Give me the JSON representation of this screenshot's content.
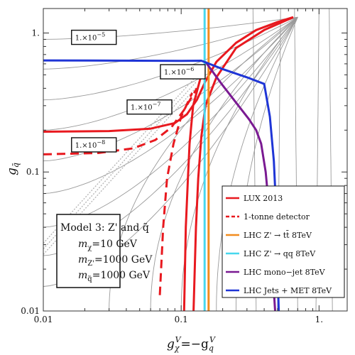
{
  "chart_data": {
    "type": "line",
    "xscale": "log",
    "yscale": "log",
    "xlim": [
      0.01,
      1.6
    ],
    "ylim": [
      0.01,
      1.5
    ],
    "xlabel": "g_χ^V=−g_q^V",
    "ylabel": "g_q̃",
    "x_ticks": [
      {
        "value": 0.01,
        "label": "0.01"
      },
      {
        "value": 0.1,
        "label": "0.1"
      },
      {
        "value": 1,
        "label": "1."
      }
    ],
    "y_ticks": [
      {
        "value": 0.01,
        "label": "0.01"
      },
      {
        "value": 0.1,
        "label": "0.1"
      },
      {
        "value": 1,
        "label": "1."
      }
    ],
    "contour_labels": [
      {
        "mantissa": "1.×10",
        "exponent": "−5",
        "x": 0.017,
        "y": 0.92
      },
      {
        "mantissa": "1.×10",
        "exponent": "−6",
        "x": 0.075,
        "y": 0.52
      },
      {
        "mantissa": "1.×10",
        "exponent": "−7",
        "x": 0.043,
        "y": 0.29
      },
      {
        "mantissa": "1.×10",
        "exponent": "−8",
        "x": 0.017,
        "y": 0.155
      }
    ],
    "series": [
      {
        "name": "LUX 2013",
        "color": "#e8191f",
        "dash": "solid",
        "segments": [
          [
            [
              0.01,
              0.195
            ],
            [
              0.03,
              0.197
            ],
            [
              0.06,
              0.205
            ],
            [
              0.09,
              0.225
            ],
            [
              0.11,
              0.26
            ],
            [
              0.13,
              0.33
            ],
            [
              0.15,
              0.45
            ],
            [
              0.18,
              0.62
            ],
            [
              0.25,
              0.85
            ],
            [
              0.35,
              1.05
            ],
            [
              0.5,
              1.2
            ],
            [
              0.65,
              1.3
            ]
          ],
          [
            [
              0.65,
              1.3
            ],
            [
              0.4,
              1.05
            ],
            [
              0.25,
              0.78
            ],
            [
              0.18,
              0.48
            ],
            [
              0.15,
              0.3
            ],
            [
              0.14,
              0.18
            ],
            [
              0.133,
              0.09
            ],
            [
              0.128,
              0.04
            ],
            [
              0.123,
              0.01
            ]
          ],
          [
            [
              0.105,
              0.01
            ],
            [
              0.108,
              0.04
            ],
            [
              0.112,
              0.09
            ],
            [
              0.115,
              0.16
            ],
            [
              0.122,
              0.3
            ],
            [
              0.14,
              0.5
            ]
          ]
        ]
      },
      {
        "name": "1-tonne detector",
        "color": "#e8191f",
        "dash": "dashed",
        "segments": [
          [
            [
              0.01,
              0.134
            ],
            [
              0.025,
              0.137
            ],
            [
              0.045,
              0.148
            ],
            [
              0.065,
              0.17
            ],
            [
              0.085,
              0.21
            ],
            [
              0.105,
              0.28
            ],
            [
              0.13,
              0.4
            ]
          ],
          [
            [
              0.07,
              0.013
            ],
            [
              0.074,
              0.04
            ],
            [
              0.079,
              0.09
            ],
            [
              0.088,
              0.16
            ],
            [
              0.1,
              0.25
            ],
            [
              0.12,
              0.37
            ]
          ]
        ]
      },
      {
        "name": "LHC Z' → tt̄ 8TeV",
        "color": "#f28c1e",
        "dash": "solid",
        "segments": [
          [
            [
              0.158,
              0.01
            ],
            [
              0.158,
              1.5
            ]
          ]
        ]
      },
      {
        "name": "LHC Z' → qq 8TeV",
        "color": "#47d7ee",
        "dash": "solid",
        "segments": [
          [
            [
              0.148,
              0.01
            ],
            [
              0.148,
              1.5
            ]
          ]
        ]
      },
      {
        "name": "LHC mono−jet 8TeV",
        "color": "#7a1a92",
        "dash": "solid",
        "segments": [
          [
            [
              0.15,
              0.62
            ],
            [
              0.2,
              0.42
            ],
            [
              0.26,
              0.3
            ],
            [
              0.31,
              0.24
            ],
            [
              0.35,
              0.2
            ],
            [
              0.38,
              0.16
            ],
            [
              0.41,
              0.1
            ],
            [
              0.43,
              0.06
            ],
            [
              0.45,
              0.03
            ],
            [
              0.47,
              0.014
            ],
            [
              0.48,
              0.01
            ]
          ]
        ]
      },
      {
        "name": "LHC Jets + MET 8TeV",
        "color": "#1f35d6",
        "dash": "solid",
        "segments": [
          [
            [
              0.01,
              0.635
            ],
            [
              0.05,
              0.632
            ],
            [
              0.1,
              0.63
            ],
            [
              0.14,
              0.632
            ],
            [
              0.16,
              0.6
            ],
            [
              0.2,
              0.55
            ],
            [
              0.3,
              0.48
            ],
            [
              0.4,
              0.43
            ],
            [
              0.44,
              0.25
            ],
            [
              0.47,
              0.12
            ],
            [
              0.49,
              0.05
            ],
            [
              0.5,
              0.02
            ],
            [
              0.51,
              0.01
            ]
          ]
        ]
      }
    ],
    "model_box": {
      "title": "Model 3: Z' and q̃",
      "lines": [
        {
          "sym": "m",
          "sub": "χ",
          "val": "=10 GeV"
        },
        {
          "sym": "m",
          "sub": "Z'",
          "val": "=1000 GeV"
        },
        {
          "sym": "m",
          "sub": "q̃",
          "val": "=1000 GeV"
        }
      ]
    },
    "legend_position": "bottom-right",
    "grid": false
  }
}
